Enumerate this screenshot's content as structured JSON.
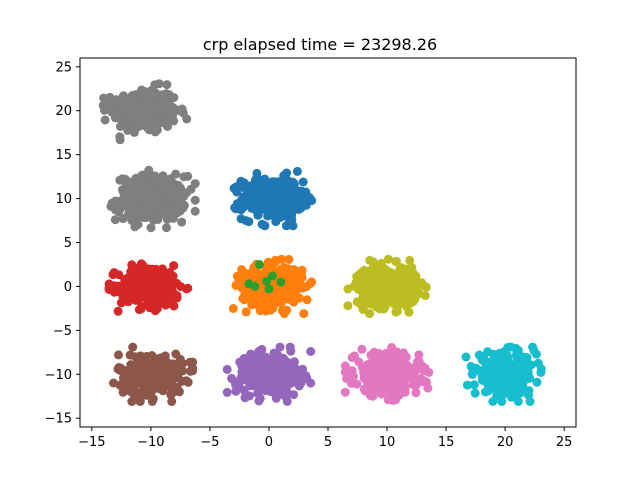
{
  "chart_data": {
    "type": "scatter",
    "title": "crp elapsed time = 23298.26",
    "xlabel": "",
    "ylabel": "",
    "xlim": [
      -16,
      26
    ],
    "ylim": [
      -16,
      26
    ],
    "xticks": [
      -15,
      -10,
      -5,
      0,
      5,
      10,
      15,
      20,
      25
    ],
    "yticks": [
      -15,
      -10,
      -5,
      0,
      5,
      10,
      15,
      20,
      25
    ],
    "xtick_labels": [
      "−15",
      "−10",
      "−5",
      "0",
      "5",
      "10",
      "15",
      "20",
      "25"
    ],
    "ytick_labels": [
      "−15",
      "−10",
      "−5",
      "0",
      "5",
      "10",
      "15",
      "20",
      "25"
    ],
    "grid": false,
    "series": [
      {
        "color": "#7f7f7f",
        "center": [
          -10.5,
          20.0
        ],
        "spread": [
          1.6,
          1.5
        ],
        "points_approx": 300
      },
      {
        "color": "#7f7f7f",
        "center": [
          -10.0,
          10.0
        ],
        "spread": [
          1.7,
          1.5
        ],
        "points_approx": 300
      },
      {
        "color": "#1f77b4",
        "center": [
          0.3,
          10.0
        ],
        "spread": [
          1.5,
          1.4
        ],
        "points_approx": 300
      },
      {
        "color": "#d62728",
        "center": [
          -10.0,
          0.0
        ],
        "spread": [
          1.6,
          1.4
        ],
        "points_approx": 300
      },
      {
        "color": "#ff7f0e",
        "center": [
          0.3,
          0.0
        ],
        "spread": [
          1.5,
          1.4
        ],
        "points_approx": 300
      },
      {
        "color": "#2ca02c",
        "points": [
          [
            -1.7,
            0.3
          ],
          [
            -1.2,
            0.0
          ],
          [
            -0.8,
            2.5
          ],
          [
            -0.2,
            0.6
          ],
          [
            0.0,
            -0.3
          ],
          [
            0.3,
            1.2
          ],
          [
            1.0,
            0.5
          ]
        ]
      },
      {
        "color": "#bcbd22",
        "center": [
          10.0,
          0.0
        ],
        "spread": [
          1.5,
          1.4
        ],
        "points_approx": 300
      },
      {
        "color": "#8c564b",
        "center": [
          -10.0,
          -10.0
        ],
        "spread": [
          1.6,
          1.4
        ],
        "points_approx": 300
      },
      {
        "color": "#9467bd",
        "center": [
          0.0,
          -10.0
        ],
        "spread": [
          1.6,
          1.4
        ],
        "points_approx": 300
      },
      {
        "color": "#e377c2",
        "center": [
          10.0,
          -10.0
        ],
        "spread": [
          1.6,
          1.4
        ],
        "points_approx": 300
      },
      {
        "color": "#17becf",
        "center": [
          20.0,
          -10.0
        ],
        "spread": [
          1.5,
          1.4
        ],
        "points_approx": 300
      }
    ]
  }
}
